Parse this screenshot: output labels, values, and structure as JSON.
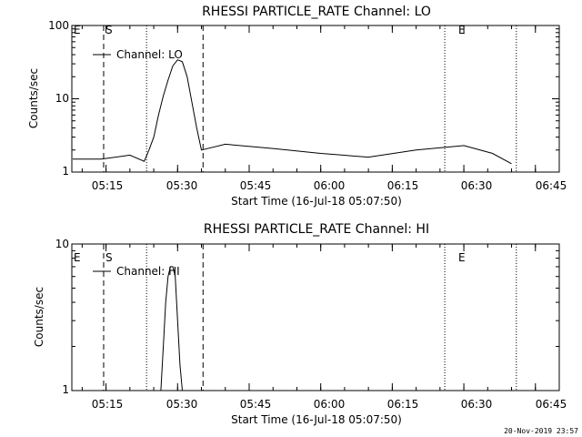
{
  "footer": {
    "timestamp": "20-Nov-2019 23:57"
  },
  "chart_data": [
    {
      "type": "line",
      "title": "RHESSI PARTICLE_RATE Channel: LO",
      "xlabel": "Start Time (16-Jul-18 05:07:50)",
      "ylabel": "Counts/sec",
      "yscale": "log",
      "ylim": [
        1,
        100
      ],
      "xlim": [
        "05:07:50",
        "06:50:00"
      ],
      "x_ticks": [
        "05:15",
        "05:30",
        "05:45",
        "06:00",
        "06:15",
        "06:30",
        "06:45"
      ],
      "y_ticks": [
        "1",
        "10",
        "100"
      ],
      "legend": {
        "entries": [
          "Channel: LO"
        ],
        "position": "top-left"
      },
      "markers": [
        {
          "label": "E",
          "time": "05:07:50",
          "style": "none"
        },
        {
          "label": "S",
          "time": "05:14:30",
          "style": "dashed"
        },
        {
          "label": "",
          "time": "05:23:30",
          "style": "dotted"
        },
        {
          "label": "",
          "time": "05:35:20",
          "style": "dashed"
        },
        {
          "label": "E",
          "time": "06:26:00",
          "style": "dotted"
        },
        {
          "label": "",
          "time": "06:41:00",
          "style": "dotted"
        }
      ],
      "series": [
        {
          "x": [
            "05:08",
            "05:14",
            "05:20",
            "05:23",
            "05:24",
            "05:25",
            "05:26",
            "05:27",
            "05:28",
            "05:29",
            "05:30",
            "05:31",
            "05:32",
            "05:33",
            "05:34",
            "05:35",
            "05:40",
            "05:50",
            "06:00",
            "06:10",
            "06:20",
            "06:30",
            "06:36",
            "06:40"
          ],
          "y": [
            1.5,
            1.5,
            1.7,
            1.4,
            2,
            3,
            6,
            11,
            18,
            28,
            34,
            32,
            20,
            9,
            4,
            2,
            2.4,
            2.1,
            1.8,
            1.6,
            2,
            2.3,
            1.8,
            1.3
          ]
        }
      ]
    },
    {
      "type": "line",
      "title": "RHESSI PARTICLE_RATE Channel: HI",
      "xlabel": "Start Time (16-Jul-18 05:07:50)",
      "ylabel": "Counts/sec",
      "yscale": "log",
      "ylim": [
        1,
        10
      ],
      "xlim": [
        "05:07:50",
        "06:50:00"
      ],
      "x_ticks": [
        "05:15",
        "05:30",
        "05:45",
        "06:00",
        "06:15",
        "06:30",
        "06:45"
      ],
      "y_ticks": [
        "1",
        "10"
      ],
      "legend": {
        "entries": [
          "Channel: HI"
        ],
        "position": "top-left"
      },
      "markers": [
        {
          "label": "E",
          "time": "05:07:50",
          "style": "none"
        },
        {
          "label": "S",
          "time": "05:14:30",
          "style": "dashed"
        },
        {
          "label": "",
          "time": "05:23:30",
          "style": "dotted"
        },
        {
          "label": "",
          "time": "05:35:20",
          "style": "dashed"
        },
        {
          "label": "E",
          "time": "06:26:00",
          "style": "dotted"
        },
        {
          "label": "",
          "time": "06:41:00",
          "style": "dotted"
        }
      ],
      "series": [
        {
          "x": [
            "05:26.5",
            "05:27",
            "05:27.5",
            "05:28",
            "05:28.5",
            "05:29",
            "05:29.5",
            "05:30",
            "05:30.5",
            "05:31"
          ],
          "y": [
            1,
            2,
            4,
            6,
            7,
            7,
            6,
            3,
            1.5,
            1
          ]
        }
      ]
    }
  ]
}
